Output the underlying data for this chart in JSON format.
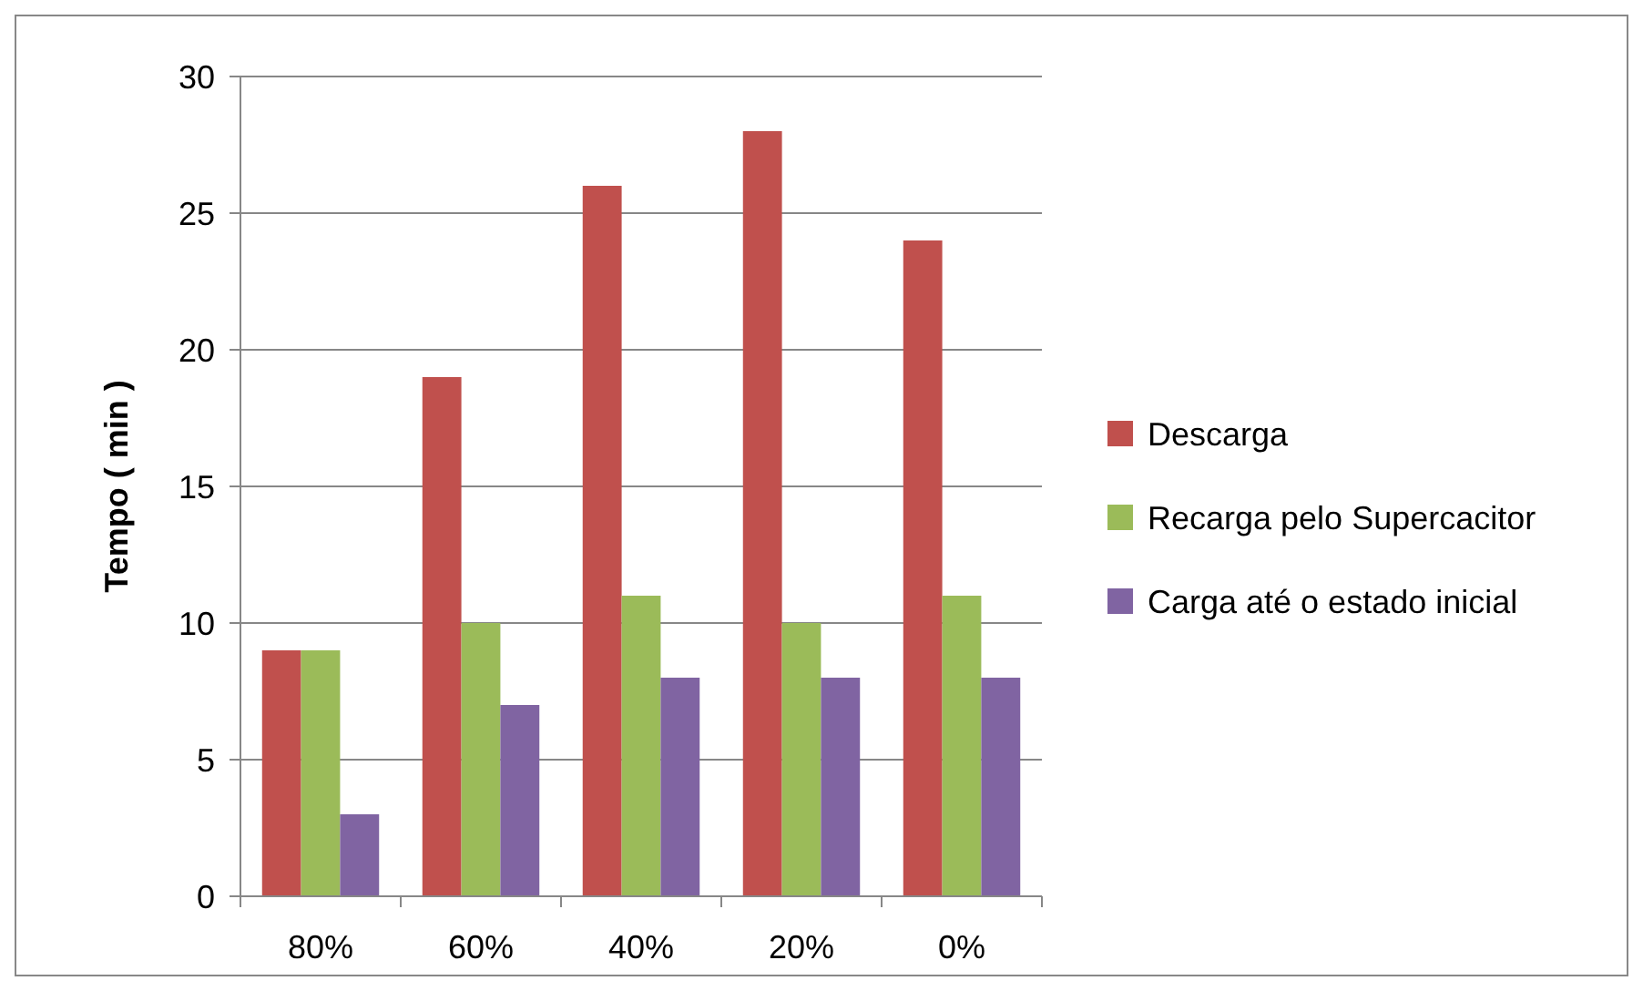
{
  "chart_data": {
    "type": "bar",
    "ylabel": "Tempo ( min )",
    "categories": [
      "80%",
      "60%",
      "40%",
      "20%",
      "0%"
    ],
    "series": [
      {
        "name": "Descarga",
        "color": "#c0504d",
        "values": [
          9,
          19,
          26,
          28,
          24
        ]
      },
      {
        "name": "Recarga pelo Supercacitor",
        "color": "#9bbb59",
        "values": [
          9,
          10,
          11,
          10,
          11
        ]
      },
      {
        "name": "Carga até o estado inicial",
        "color": "#8064a2",
        "values": [
          3,
          7,
          8,
          8,
          8
        ]
      }
    ],
    "ylim": [
      0,
      30
    ],
    "yticks": [
      0,
      5,
      10,
      15,
      20,
      25,
      30
    ],
    "grid": "y",
    "legend": "right"
  }
}
